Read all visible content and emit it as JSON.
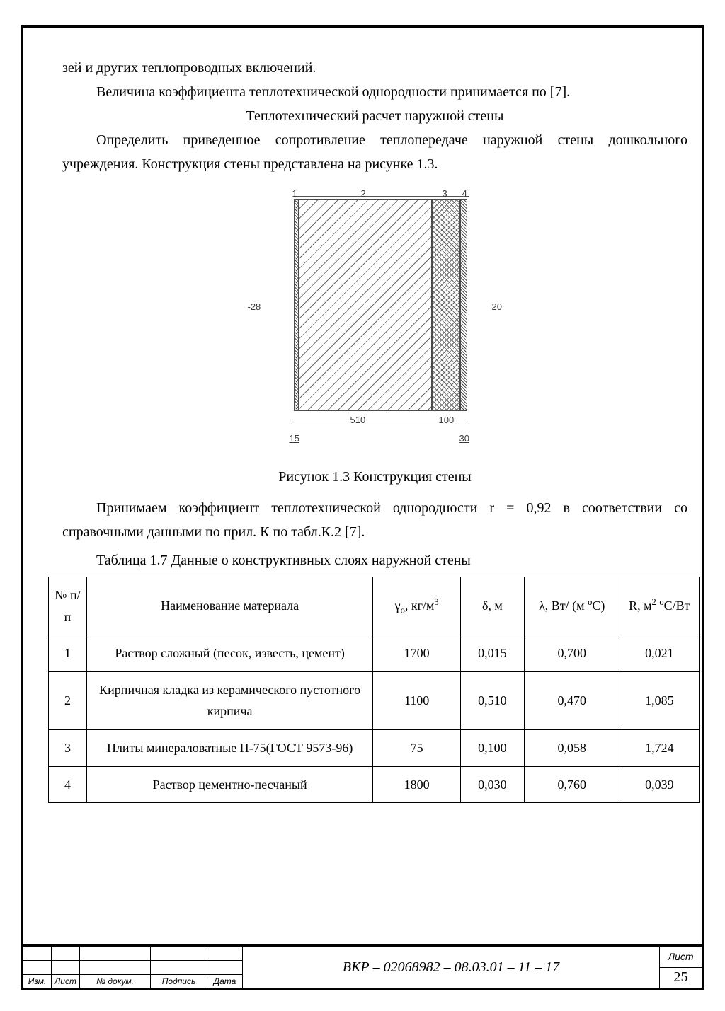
{
  "body": {
    "frag1": "зей и других теплопроводных включений.",
    "frag2": "Величина коэффициента теплотехнической однородности принимается по [7].",
    "heading": "Теплотехнический расчет наружной стены",
    "para2a": "Определить приведенное сопротивление теплопередаче наружной стены дошкольного учреждения. Конструкция стены представлена на рисунке 1.3.",
    "fig_caption": "Рисунок  1.3  Конструкция стены",
    "para3": "Принимаем коэффициент теплотехнической однородности r = 0,92 в соответствии со справочными данными по прил. К по табл.К.2 [7].",
    "table_title": "Таблица 1.7  Данные о конструктивных слоях наружной стены"
  },
  "diagram": {
    "top_labels": [
      "1",
      "2",
      "3",
      "4"
    ],
    "left_temp": "-28",
    "right_temp": "20",
    "dim_510": "510",
    "dim_100": "100",
    "dim_15": "15",
    "dim_30": "30",
    "layer_colors": {
      "stroke": "#4a4a4a",
      "hatch": "#6a6a6a"
    }
  },
  "table": {
    "headers": {
      "num": "№ п/п",
      "name": "Наименование материала",
      "gamma_html": "γ<sub>o</sub>, кг/м<sup>3</sup>",
      "delta": "δ, м",
      "lambda_html": "λ, Вт/ (м <sup>o</sup>C)",
      "r_html": "R, м<sup>2</sup> <sup>o</sup>C/Вт"
    },
    "rows": [
      {
        "n": "1",
        "name": "Раствор сложный (песок, известь, цемент)",
        "g": "1700",
        "d": "0,015",
        "l": "0,700",
        "r": "0,021"
      },
      {
        "n": "2",
        "name": "Кирпичная кладка из керамического пустотного кирпича",
        "g": "1100",
        "d": "0,510",
        "l": "0,470",
        "r": "1,085"
      },
      {
        "n": "3",
        "name": "Плиты минераловатные П-75(ГОСТ 9573-96)",
        "g": "75",
        "d": "0,100",
        "l": "0,058",
        "r": "1,724"
      },
      {
        "n": "4",
        "name": "Раствор цементно-песчаный",
        "g": "1800",
        "d": "0,030",
        "l": "0,760",
        "r": "0,039"
      }
    ]
  },
  "title_block": {
    "izm": "Изм.",
    "list": "Лист",
    "ndoc": "№ докум.",
    "podpis": "Подпись",
    "data": "Дата",
    "code": "ВКР – 02068982 – 08.03.01 – 11 – 17",
    "list_label": "Лист",
    "page_num": "25"
  }
}
